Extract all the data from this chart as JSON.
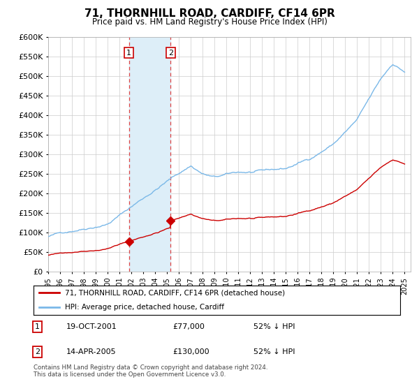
{
  "title": "71, THORNHILL ROAD, CARDIFF, CF14 6PR",
  "subtitle": "Price paid vs. HM Land Registry's House Price Index (HPI)",
  "legend_line1": "71, THORNHILL ROAD, CARDIFF, CF14 6PR (detached house)",
  "legend_line2": "HPI: Average price, detached house, Cardiff",
  "annotation1_date": "19-OCT-2001",
  "annotation1_price": "£77,000",
  "annotation1_hpi": "52% ↓ HPI",
  "annotation2_date": "14-APR-2005",
  "annotation2_price": "£130,000",
  "annotation2_hpi": "52% ↓ HPI",
  "footer": "Contains HM Land Registry data © Crown copyright and database right 2024.\nThis data is licensed under the Open Government Licence v3.0.",
  "hpi_color": "#7ab8e8",
  "price_color": "#cc0000",
  "shade_color": "#ddeef8",
  "vline_color": "#dd4444",
  "ylim_min": 0,
  "ylim_max": 600000,
  "yticks": [
    0,
    50000,
    100000,
    150000,
    200000,
    250000,
    300000,
    350000,
    400000,
    450000,
    500000,
    550000,
    600000
  ],
  "sale1_year": 2001.8,
  "sale1_price": 77000,
  "sale2_year": 2005.3,
  "sale2_price": 130000
}
